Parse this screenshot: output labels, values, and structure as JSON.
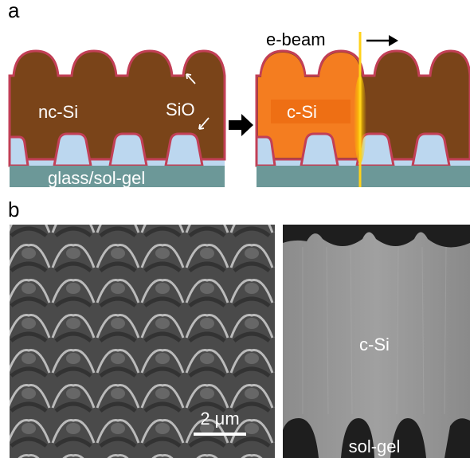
{
  "panel_a": {
    "label": "a",
    "left": {
      "nc_si": "nc-Si",
      "sio": "SiO",
      "substrate": "glass/sol-gel"
    },
    "right": {
      "e_beam": "e-beam",
      "c_si": "c-Si"
    }
  },
  "panel_b": {
    "label": "b",
    "sem_left": {
      "scale_bar": "2 μm"
    },
    "sem_right": {
      "c_si": "c-Si",
      "sol_gel": "sol-gel"
    }
  }
}
